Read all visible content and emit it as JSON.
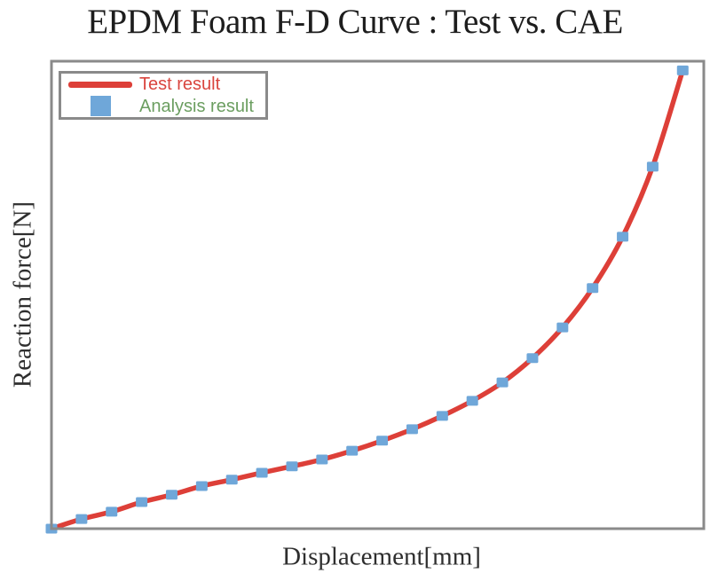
{
  "title": "EPDM Foam F-D Curve : Test vs. CAE",
  "axes": {
    "x_label": "Displacement[mm]",
    "y_label": "Reaction force[N]",
    "tick_labels_visible": false
  },
  "legend": {
    "position": "top-left",
    "items": [
      {
        "label": "Test result",
        "swatch": "line",
        "swatch_color": "#dd3f38",
        "label_color": "#d9453e"
      },
      {
        "label": "Analysis result",
        "swatch": "square",
        "swatch_color": "#6fa7d9",
        "label_color": "#6b9e60"
      }
    ]
  },
  "style": {
    "test_line_color": "#dd3f38",
    "analysis_marker_color": "#6fa7d9",
    "legend_green_text": "#6b9e60",
    "legend_red_text": "#d9453e",
    "plot_border_color": "#8a8a8a",
    "grid_major_color": "#ececec",
    "grid_minor_color": "#d6d6d6",
    "title_color": "#1d1d1d",
    "axis_label_color": "#2e2e2e",
    "background": "#ffffff"
  },
  "chart_data": {
    "type": "line",
    "title": "EPDM Foam F-D Curve : Test vs. CAE",
    "xlabel": "Displacement[mm]",
    "ylabel": "Reaction force[N]",
    "xlim": [
      0,
      21.7
    ],
    "ylim": [
      0,
      1.02
    ],
    "tick_labels": "none (axes are unlabeled in the figure)",
    "y_units": "relative force, fraction of maximum",
    "grid": {
      "vertical_divisions": 28,
      "horizontal_major_divisions": 12,
      "horizontal_minor": "dotted midlines",
      "vertical_minor": "none"
    },
    "legend_position": "upper-left inside plot",
    "x": [
      0,
      1,
      2,
      3,
      4,
      5,
      6,
      7,
      8,
      9,
      10,
      11,
      12,
      13,
      14,
      15,
      16,
      17,
      18,
      19,
      20,
      21
    ],
    "series": [
      {
        "name": "Test result",
        "type": "line",
        "color": "#dd3f38",
        "y": [
          0.0,
          0.021,
          0.037,
          0.058,
          0.074,
          0.093,
          0.107,
          0.122,
          0.136,
          0.151,
          0.17,
          0.192,
          0.217,
          0.246,
          0.279,
          0.319,
          0.372,
          0.439,
          0.525,
          0.637,
          0.79,
          1.0
        ]
      },
      {
        "name": "Analysis result",
        "type": "scatter",
        "marker": "square",
        "color": "#6fa7d9",
        "y": [
          0.0,
          0.021,
          0.037,
          0.058,
          0.074,
          0.093,
          0.107,
          0.122,
          0.136,
          0.151,
          0.17,
          0.192,
          0.217,
          0.246,
          0.279,
          0.319,
          0.372,
          0.439,
          0.525,
          0.637,
          0.79,
          1.0
        ]
      }
    ]
  }
}
